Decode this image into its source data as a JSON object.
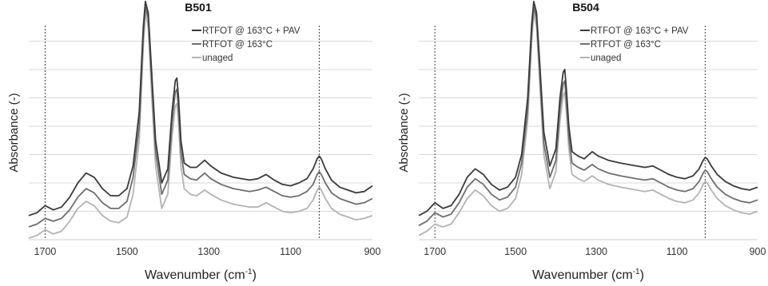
{
  "chart_data": [
    {
      "type": "line",
      "title": "B501",
      "xlabel": "Wavenumber (cm-1)",
      "xlabel_base": "Wavenumber (cm",
      "xlabel_sup": "-1",
      "xlabel_end": ")",
      "ylabel": "Absorbance (-)",
      "xlim": [
        1740,
        900
      ],
      "x_reversed": true,
      "xticks": [
        1700,
        1500,
        1300,
        1100,
        900
      ],
      "ylim": [
        0,
        8
      ],
      "ygrid": [
        1,
        2,
        3,
        4,
        5,
        6,
        7
      ],
      "grid": true,
      "legend_position": "top-right",
      "vlines": [
        1700,
        1030
      ],
      "series": [
        {
          "name": "RTFOT @ 163°C + PAV",
          "color": "#3a3a3a",
          "x": [
            1740,
            1720,
            1700,
            1680,
            1660,
            1640,
            1620,
            1600,
            1580,
            1560,
            1540,
            1520,
            1500,
            1485,
            1470,
            1460,
            1455,
            1448,
            1440,
            1430,
            1415,
            1400,
            1390,
            1382,
            1378,
            1374,
            1368,
            1360,
            1345,
            1330,
            1310,
            1295,
            1270,
            1240,
            1200,
            1180,
            1160,
            1140,
            1120,
            1100,
            1080,
            1060,
            1045,
            1035,
            1030,
            1025,
            1015,
            1000,
            980,
            960,
            940,
            920,
            900
          ],
          "y": [
            0.85,
            0.95,
            1.2,
            1.05,
            1.15,
            1.5,
            2.0,
            2.35,
            2.2,
            1.8,
            1.55,
            1.55,
            1.8,
            2.6,
            4.5,
            7.5,
            8.4,
            8.0,
            6.0,
            3.5,
            2.0,
            2.5,
            4.5,
            5.6,
            5.7,
            5.0,
            3.5,
            2.7,
            2.55,
            2.55,
            2.8,
            2.6,
            2.35,
            2.2,
            2.1,
            2.15,
            2.3,
            2.1,
            1.95,
            1.9,
            2.0,
            2.15,
            2.5,
            2.85,
            2.95,
            2.85,
            2.5,
            2.1,
            1.85,
            1.75,
            1.65,
            1.7,
            1.9
          ]
        },
        {
          "name": "RTFOT @ 163°C",
          "color": "#6e6e6e",
          "x": [
            1740,
            1720,
            1700,
            1680,
            1660,
            1640,
            1620,
            1600,
            1580,
            1560,
            1540,
            1520,
            1500,
            1485,
            1470,
            1460,
            1455,
            1448,
            1440,
            1430,
            1415,
            1400,
            1390,
            1382,
            1378,
            1374,
            1368,
            1360,
            1345,
            1330,
            1310,
            1295,
            1270,
            1240,
            1200,
            1180,
            1160,
            1140,
            1120,
            1100,
            1080,
            1060,
            1045,
            1035,
            1030,
            1025,
            1015,
            1000,
            980,
            960,
            940,
            920,
            900
          ],
          "y": [
            0.45,
            0.55,
            0.75,
            0.65,
            0.75,
            1.05,
            1.5,
            1.8,
            1.65,
            1.3,
            1.1,
            1.1,
            1.35,
            2.2,
            4.0,
            7.2,
            8.2,
            7.8,
            5.7,
            3.1,
            1.6,
            2.1,
            4.1,
            5.2,
            5.3,
            4.6,
            3.1,
            2.3,
            2.15,
            2.1,
            2.35,
            2.15,
            1.95,
            1.8,
            1.7,
            1.75,
            1.85,
            1.7,
            1.55,
            1.5,
            1.55,
            1.7,
            1.95,
            2.3,
            2.4,
            2.3,
            2.0,
            1.65,
            1.45,
            1.35,
            1.25,
            1.3,
            1.45
          ]
        },
        {
          "name": "unaged",
          "color": "#b3b3b3",
          "x": [
            1740,
            1720,
            1700,
            1680,
            1660,
            1640,
            1620,
            1600,
            1580,
            1560,
            1540,
            1520,
            1500,
            1485,
            1470,
            1460,
            1455,
            1448,
            1440,
            1430,
            1415,
            1400,
            1390,
            1382,
            1378,
            1374,
            1368,
            1360,
            1345,
            1330,
            1310,
            1295,
            1270,
            1240,
            1200,
            1180,
            1160,
            1140,
            1120,
            1100,
            1080,
            1060,
            1045,
            1035,
            1030,
            1025,
            1015,
            1000,
            980,
            960,
            940,
            920,
            900
          ],
          "y": [
            0.05,
            0.15,
            0.35,
            0.2,
            0.3,
            0.65,
            1.1,
            1.35,
            1.2,
            0.85,
            0.65,
            0.6,
            0.8,
            1.6,
            3.5,
            6.8,
            8.0,
            7.5,
            5.2,
            2.6,
            1.1,
            1.6,
            3.6,
            4.7,
            4.8,
            4.1,
            2.6,
            1.8,
            1.6,
            1.55,
            1.75,
            1.6,
            1.4,
            1.25,
            1.15,
            1.15,
            1.3,
            1.15,
            1.0,
            0.95,
            1.0,
            1.1,
            1.4,
            1.75,
            1.85,
            1.75,
            1.45,
            1.1,
            0.9,
            0.8,
            0.7,
            0.75,
            0.85
          ]
        }
      ]
    },
    {
      "type": "line",
      "title": "B504",
      "xlabel": "Wavenumber (cm-1)",
      "xlabel_base": "Wavenumber (cm",
      "xlabel_sup": "-1",
      "xlabel_end": ")",
      "ylabel": "Absorbance (-)",
      "xlim": [
        1740,
        900
      ],
      "x_reversed": true,
      "xticks": [
        1700,
        1500,
        1300,
        1100,
        900
      ],
      "ylim": [
        0,
        8
      ],
      "ygrid": [
        1,
        2,
        3,
        4,
        5,
        6,
        7
      ],
      "grid": true,
      "legend_position": "top-right",
      "vlines": [
        1700,
        1030
      ],
      "series": [
        {
          "name": "RTFOT @ 163°C + PAV",
          "color": "#3a3a3a",
          "x": [
            1740,
            1720,
            1700,
            1680,
            1660,
            1640,
            1620,
            1600,
            1580,
            1560,
            1540,
            1520,
            1500,
            1485,
            1470,
            1460,
            1455,
            1448,
            1440,
            1430,
            1415,
            1400,
            1390,
            1382,
            1378,
            1374,
            1368,
            1360,
            1345,
            1330,
            1310,
            1295,
            1270,
            1240,
            1200,
            1180,
            1160,
            1140,
            1120,
            1100,
            1080,
            1060,
            1045,
            1035,
            1030,
            1025,
            1015,
            1000,
            980,
            960,
            940,
            920,
            900
          ],
          "y": [
            0.85,
            1.0,
            1.3,
            1.1,
            1.2,
            1.6,
            2.2,
            2.5,
            2.3,
            1.95,
            1.75,
            1.85,
            2.2,
            3.0,
            5.0,
            7.6,
            8.4,
            8.0,
            6.2,
            3.8,
            2.6,
            3.2,
            5.0,
            5.9,
            6.0,
            5.3,
            4.0,
            3.1,
            2.95,
            2.85,
            3.1,
            2.95,
            2.8,
            2.7,
            2.6,
            2.55,
            2.6,
            2.45,
            2.3,
            2.2,
            2.15,
            2.25,
            2.5,
            2.8,
            2.9,
            2.85,
            2.6,
            2.3,
            2.05,
            1.9,
            1.8,
            1.75,
            1.85
          ]
        },
        {
          "name": "RTFOT @ 163°C",
          "color": "#6e6e6e",
          "x": [
            1740,
            1720,
            1700,
            1680,
            1660,
            1640,
            1620,
            1600,
            1580,
            1560,
            1540,
            1520,
            1500,
            1485,
            1470,
            1460,
            1455,
            1448,
            1440,
            1430,
            1415,
            1400,
            1390,
            1382,
            1378,
            1374,
            1368,
            1360,
            1345,
            1330,
            1310,
            1295,
            1270,
            1240,
            1200,
            1180,
            1160,
            1140,
            1120,
            1100,
            1080,
            1060,
            1045,
            1035,
            1030,
            1025,
            1015,
            1000,
            980,
            960,
            940,
            920,
            900
          ],
          "y": [
            0.5,
            0.65,
            0.95,
            0.8,
            0.9,
            1.3,
            1.85,
            2.15,
            1.95,
            1.6,
            1.4,
            1.5,
            1.85,
            2.7,
            4.6,
            7.3,
            8.2,
            7.8,
            5.9,
            3.4,
            2.2,
            2.8,
            4.6,
            5.5,
            5.6,
            4.9,
            3.6,
            2.7,
            2.55,
            2.45,
            2.65,
            2.5,
            2.35,
            2.25,
            2.15,
            2.1,
            2.15,
            2.0,
            1.85,
            1.75,
            1.7,
            1.8,
            2.05,
            2.35,
            2.45,
            2.4,
            2.15,
            1.85,
            1.6,
            1.45,
            1.35,
            1.3,
            1.4
          ]
        },
        {
          "name": "unaged",
          "color": "#b3b3b3",
          "x": [
            1740,
            1720,
            1700,
            1680,
            1660,
            1640,
            1620,
            1600,
            1580,
            1560,
            1540,
            1520,
            1500,
            1485,
            1470,
            1460,
            1455,
            1448,
            1440,
            1430,
            1415,
            1400,
            1390,
            1382,
            1378,
            1374,
            1368,
            1360,
            1345,
            1330,
            1310,
            1295,
            1270,
            1240,
            1200,
            1180,
            1160,
            1140,
            1120,
            1100,
            1080,
            1060,
            1045,
            1035,
            1030,
            1025,
            1015,
            1000,
            980,
            960,
            940,
            920,
            900
          ],
          "y": [
            0.15,
            0.3,
            0.55,
            0.45,
            0.55,
            0.95,
            1.45,
            1.75,
            1.55,
            1.2,
            1.0,
            1.1,
            1.45,
            2.3,
            4.2,
            7.0,
            8.0,
            7.5,
            5.5,
            3.0,
            1.8,
            2.4,
            4.2,
            5.1,
            5.2,
            4.5,
            3.2,
            2.3,
            2.15,
            2.05,
            2.25,
            2.1,
            1.95,
            1.85,
            1.75,
            1.7,
            1.75,
            1.6,
            1.45,
            1.35,
            1.3,
            1.4,
            1.65,
            1.95,
            2.05,
            2.0,
            1.75,
            1.45,
            1.2,
            1.05,
            0.95,
            0.9,
            1.0
          ]
        }
      ]
    }
  ]
}
